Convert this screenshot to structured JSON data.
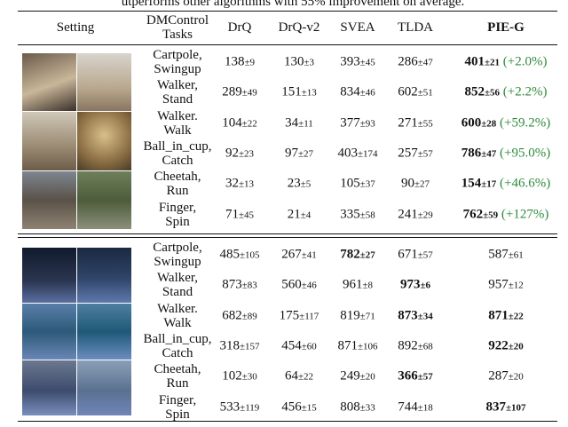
{
  "caption": "utperforms other algorithms with 55% improvement on average.",
  "table": {
    "header": [
      [
        "Setting"
      ],
      [
        "DMControl",
        "Tasks"
      ],
      [
        "DrQ"
      ],
      [
        "DrQ-v2"
      ],
      [
        "SVEA"
      ],
      [
        "TLDA"
      ],
      [
        "PIE-G"
      ]
    ],
    "header_bold": [
      false,
      false,
      false,
      false,
      false,
      false,
      true
    ],
    "blocks": [
      {
        "rows": [
          {
            "task": [
              "Cartpole,",
              "Swingup"
            ],
            "cells": [
              {
                "mean": "138",
                "std": "±9"
              },
              {
                "mean": "130",
                "std": "±3"
              },
              {
                "mean": "393",
                "std": "±45"
              },
              {
                "mean": "286",
                "std": "±47"
              },
              {
                "mean": "401",
                "std": "±21",
                "bold": true,
                "gain": "(+2.0%)"
              }
            ]
          },
          {
            "task": [
              "Walker,",
              "Stand"
            ],
            "cells": [
              {
                "mean": "289",
                "std": "±49"
              },
              {
                "mean": "151",
                "std": "±13"
              },
              {
                "mean": "834",
                "std": "±46"
              },
              {
                "mean": "602",
                "std": "±51"
              },
              {
                "mean": "852",
                "std": "±56",
                "bold": true,
                "gain": "(+2.2%)"
              }
            ]
          },
          {
            "task": [
              "Walker.",
              "Walk"
            ],
            "cells": [
              {
                "mean": "104",
                "std": "±22"
              },
              {
                "mean": "34",
                "std": "±11"
              },
              {
                "mean": "377",
                "std": "±93"
              },
              {
                "mean": "271",
                "std": "±55"
              },
              {
                "mean": "600",
                "std": "±28",
                "bold": true,
                "gain": "(+59.2%)"
              }
            ]
          },
          {
            "task": [
              "Ball_in_cup,",
              "Catch"
            ],
            "cells": [
              {
                "mean": "92",
                "std": "±23"
              },
              {
                "mean": "97",
                "std": "±27"
              },
              {
                "mean": "403",
                "std": "±174"
              },
              {
                "mean": "257",
                "std": "±57"
              },
              {
                "mean": "786",
                "std": "±47",
                "bold": true,
                "gain": "(+95.0%)"
              }
            ]
          },
          {
            "task": [
              "Cheetah,",
              "Run"
            ],
            "cells": [
              {
                "mean": "32",
                "std": "±13"
              },
              {
                "mean": "23",
                "std": "±5"
              },
              {
                "mean": "105",
                "std": "±37"
              },
              {
                "mean": "90",
                "std": "±27"
              },
              {
                "mean": "154",
                "std": "±17",
                "bold": true,
                "gain": "(+46.6%)"
              }
            ]
          },
          {
            "task": [
              "Finger,",
              "Spin"
            ],
            "cells": [
              {
                "mean": "71",
                "std": "±45"
              },
              {
                "mean": "21",
                "std": "±4"
              },
              {
                "mean": "335",
                "std": "±58"
              },
              {
                "mean": "241",
                "std": "±29"
              },
              {
                "mean": "762",
                "std": "±59",
                "bold": true,
                "gain": "(+127%)"
              }
            ]
          }
        ]
      },
      {
        "rows": [
          {
            "task": [
              "Cartpole,",
              "Swingup"
            ],
            "cells": [
              {
                "mean": "485",
                "std": "±105"
              },
              {
                "mean": "267",
                "std": "±41"
              },
              {
                "mean": "782",
                "std": "±27",
                "bold": true
              },
              {
                "mean": "671",
                "std": "±57"
              },
              {
                "mean": "587",
                "std": "±61"
              }
            ]
          },
          {
            "task": [
              "Walker,",
              "Stand"
            ],
            "cells": [
              {
                "mean": "873",
                "std": "±83"
              },
              {
                "mean": "560",
                "std": "±46"
              },
              {
                "mean": "961",
                "std": "±8"
              },
              {
                "mean": "973",
                "std": "±6",
                "bold": true
              },
              {
                "mean": "957",
                "std": "±12"
              }
            ]
          },
          {
            "task": [
              "Walker.",
              "Walk"
            ],
            "cells": [
              {
                "mean": "682",
                "std": "±89"
              },
              {
                "mean": "175",
                "std": "±117"
              },
              {
                "mean": "819",
                "std": "±71"
              },
              {
                "mean": "873",
                "std": "±34",
                "bold": true
              },
              {
                "mean": "871",
                "std": "±22",
                "bold": true
              }
            ]
          },
          {
            "task": [
              "Ball_in_cup,",
              "Catch"
            ],
            "cells": [
              {
                "mean": "318",
                "std": "±157"
              },
              {
                "mean": "454",
                "std": "±60"
              },
              {
                "mean": "871",
                "std": "±106"
              },
              {
                "mean": "892",
                "std": "±68"
              },
              {
                "mean": "922",
                "std": "±20",
                "bold": true
              }
            ]
          },
          {
            "task": [
              "Cheetah,",
              "Run"
            ],
            "cells": [
              {
                "mean": "102",
                "std": "±30"
              },
              {
                "mean": "64",
                "std": "±22"
              },
              {
                "mean": "249",
                "std": "±20"
              },
              {
                "mean": "366",
                "std": "±57",
                "bold": true
              },
              {
                "mean": "287",
                "std": "±20"
              }
            ]
          },
          {
            "task": [
              "Finger,",
              "Spin"
            ],
            "cells": [
              {
                "mean": "533",
                "std": "±119"
              },
              {
                "mean": "456",
                "std": "±15"
              },
              {
                "mean": "808",
                "std": "±33"
              },
              {
                "mean": "744",
                "std": "±18"
              },
              {
                "mean": "837",
                "std": "±107",
                "bold": true
              }
            ]
          }
        ]
      }
    ]
  }
}
